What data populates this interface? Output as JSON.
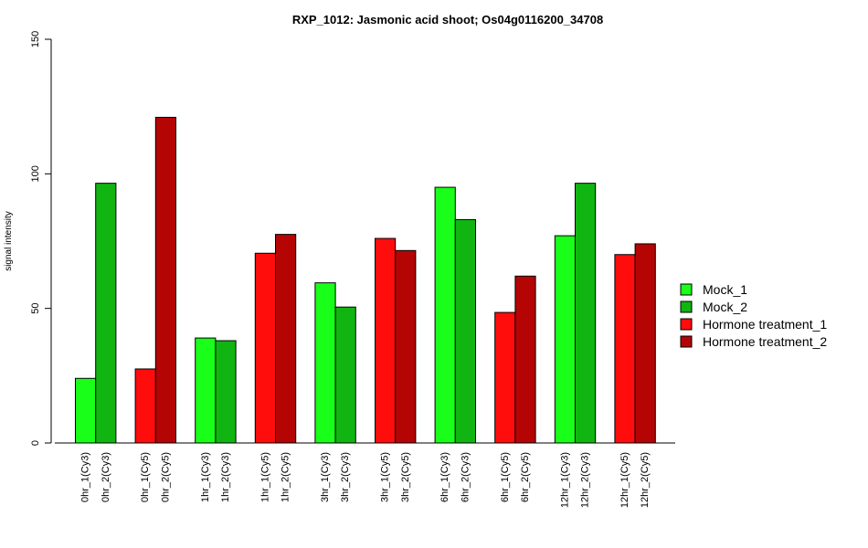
{
  "chart_data": {
    "type": "bar",
    "title": "RXP_1012: Jasmonic acid shoot; Os04g0116200_34708",
    "ylabel": "signal intensity",
    "xlabel": "",
    "ylim": [
      0,
      150
    ],
    "yticks": [
      0,
      50,
      100,
      150
    ],
    "grid": false,
    "legend_position": "right",
    "legend": [
      {
        "name": "Mock_1",
        "color": "#19ff19"
      },
      {
        "name": "Mock_2",
        "color": "#11b511"
      },
      {
        "name": "Hormone treatment_1",
        "color": "#ff0d0d"
      },
      {
        "name": "Hormone treatment_2",
        "color": "#b50404"
      }
    ],
    "bars": [
      {
        "label": "0hr_1(Cy3)",
        "value": 24,
        "color": "#19ff19"
      },
      {
        "label": "0hr_2(Cy3)",
        "value": 96.5,
        "color": "#11b511"
      },
      {
        "label": "0hr_1(Cy5)",
        "value": 27.5,
        "color": "#ff0d0d"
      },
      {
        "label": "0hr_2(Cy5)",
        "value": 121,
        "color": "#b50404"
      },
      {
        "label": "1hr_1(Cy3)",
        "value": 39,
        "color": "#19ff19"
      },
      {
        "label": "1hr_2(Cy3)",
        "value": 38,
        "color": "#11b511"
      },
      {
        "label": "1hr_1(Cy5)",
        "value": 70.5,
        "color": "#ff0d0d"
      },
      {
        "label": "1hr_2(Cy5)",
        "value": 77.5,
        "color": "#b50404"
      },
      {
        "label": "3hr_1(Cy3)",
        "value": 59.5,
        "color": "#19ff19"
      },
      {
        "label": "3hr_2(Cy3)",
        "value": 50.5,
        "color": "#11b511"
      },
      {
        "label": "3hr_1(Cy5)",
        "value": 76,
        "color": "#ff0d0d"
      },
      {
        "label": "3hr_2(Cy5)",
        "value": 71.5,
        "color": "#b50404"
      },
      {
        "label": "6hr_1(Cy3)",
        "value": 95,
        "color": "#19ff19"
      },
      {
        "label": "6hr_2(Cy3)",
        "value": 83,
        "color": "#11b511"
      },
      {
        "label": "6hr_1(Cy5)",
        "value": 48.5,
        "color": "#ff0d0d"
      },
      {
        "label": "6hr_2(Cy5)",
        "value": 62,
        "color": "#b50404"
      },
      {
        "label": "12hr_1(Cy3)",
        "value": 77,
        "color": "#19ff19"
      },
      {
        "label": "12hr_2(Cy3)",
        "value": 96.5,
        "color": "#11b511"
      },
      {
        "label": "12hr_1(Cy5)",
        "value": 70,
        "color": "#ff0d0d"
      },
      {
        "label": "12hr_2(Cy5)",
        "value": 74,
        "color": "#b50404"
      }
    ]
  }
}
